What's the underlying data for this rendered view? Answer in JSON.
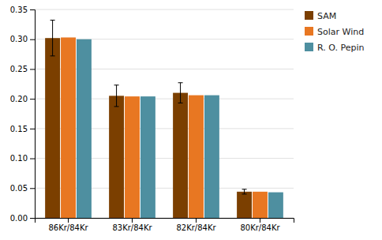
{
  "chart_data": {
    "type": "bar",
    "categories": [
      "86Kr/84Kr",
      "83Kr/84Kr",
      "82Kr/84Kr",
      "80Kr/84Kr"
    ],
    "series": [
      {
        "name": "SAM",
        "color": "#7B3F00",
        "values": [
          0.302,
          0.205,
          0.21,
          0.044
        ],
        "errors": [
          0.03,
          0.018,
          0.017,
          0.004
        ]
      },
      {
        "name": "Solar Wind",
        "color": "#E87722",
        "values": [
          0.303,
          0.204,
          0.206,
          0.044
        ]
      },
      {
        "name": "R. O. Pepin",
        "color": "#4E8FA0",
        "values": [
          0.3,
          0.204,
          0.206,
          0.043
        ]
      }
    ],
    "ylim": [
      0,
      0.35
    ],
    "yticks": [
      {
        "value": 0,
        "label": "0.00"
      },
      0.05,
      {
        "value": 0.1,
        "label": "0.10"
      },
      0.15,
      {
        "value": 0.2,
        "label": "0.20"
      },
      0.25,
      {
        "value": 0.3,
        "label": "0.30"
      },
      0.35
    ],
    "grid": true,
    "legend": "upper right"
  }
}
